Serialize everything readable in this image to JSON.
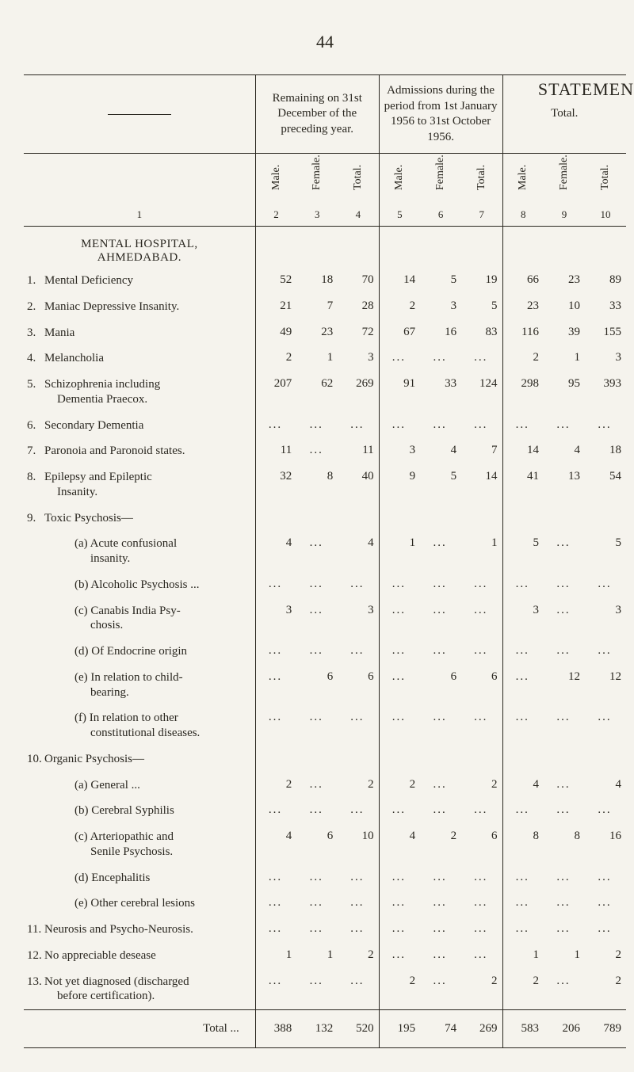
{
  "page_number": "44",
  "statemen": "STATEMEN",
  "col_group_1": "Remaining on 31st December of the preceding year.",
  "col_group_2": "Admissions during the period from 1st January 1956 to 31st October 1956.",
  "col_group_3": "Total.",
  "heads": {
    "male": "Male.",
    "female": "Female.",
    "total": "Total."
  },
  "col_nums": [
    "1",
    "2",
    "3",
    "4",
    "5",
    "6",
    "7",
    "8",
    "9",
    "10"
  ],
  "hospital_line1": "MENTAL HOSPITAL,",
  "hospital_line2": "AHMEDABAD.",
  "rows": [
    {
      "no": "1.",
      "label": "Mental Deficiency",
      "trail": "...",
      "v": [
        "52",
        "18",
        "70",
        "14",
        "5",
        "19",
        "66",
        "23",
        "89"
      ]
    },
    {
      "no": "2.",
      "label": "Maniac Depressive   Insanity.",
      "trail": "",
      "v": [
        "21",
        "7",
        "28",
        "2",
        "3",
        "5",
        "23",
        "10",
        "33"
      ]
    },
    {
      "no": "3.",
      "label": "Mania",
      "trail": "...          ...",
      "v": [
        "49",
        "23",
        "72",
        "67",
        "16",
        "83",
        "116",
        "39",
        "155"
      ]
    },
    {
      "no": "4.",
      "label": "Melancholia",
      "trail": "...          ...",
      "v": [
        "2",
        "1",
        "3",
        "...",
        "...",
        "...",
        "2",
        "1",
        "3"
      ]
    },
    {
      "no": "5.",
      "label": "Schizophrenia         including",
      "sub": "Dementia Praecox.",
      "v": [
        "207",
        "62",
        "269",
        "91",
        "33",
        "124",
        "298",
        "95",
        "393"
      ]
    },
    {
      "no": "6.",
      "label": "Secondary Dementia",
      "trail": "...",
      "v": [
        "...",
        "...",
        "...",
        "...",
        "...",
        "...",
        "...",
        "...",
        "..."
      ]
    },
    {
      "no": "7.",
      "label": "Paronoia and Paronoid states.",
      "v": [
        "11",
        "...",
        "11",
        "3",
        "4",
        "7",
        "14",
        "4",
        "18"
      ]
    },
    {
      "no": "8.",
      "label": "Epilepsy     and       Epileptic",
      "sub": "Insanity.",
      "v": [
        "32",
        "8",
        "40",
        "9",
        "5",
        "14",
        "41",
        "13",
        "54"
      ]
    }
  ],
  "row9_head": {
    "no": "9.",
    "label": "Toxic Psychosis—"
  },
  "row9a": {
    "label": "(a) Acute         confusional",
    "sub": "insanity.",
    "v": [
      "4",
      "...",
      "4",
      "1",
      "...",
      "1",
      "5",
      "...",
      "5"
    ]
  },
  "row9b": {
    "label": "(b) Alcoholic Psychosis  ...",
    "v": [
      "...",
      "...",
      "...",
      "...",
      "...",
      "...",
      "...",
      "...",
      "..."
    ]
  },
  "row9c": {
    "label": "(c) Canabis   India   Psy-",
    "sub": "chosis.",
    "v": [
      "3",
      "...",
      "3",
      "...",
      "...",
      "...",
      "3",
      "...",
      "3"
    ]
  },
  "row9d": {
    "label": "(d) Of  Endocrine   origin",
    "v": [
      "...",
      "...",
      "...",
      "...",
      "...",
      "...",
      "...",
      "...",
      "..."
    ]
  },
  "row9e": {
    "label": "(e) In relation to   child-",
    "sub": "bearing.",
    "v": [
      "...",
      "6",
      "6",
      "...",
      "6",
      "6",
      "...",
      "12",
      "12"
    ]
  },
  "row9f": {
    "label": "(f) In  relation  to  other",
    "sub": "constitutional diseases.",
    "v": [
      "...",
      "...",
      "...",
      "...",
      "...",
      "...",
      "...",
      "...",
      "..."
    ]
  },
  "row10_head": {
    "no": "10.",
    "label": "Organic Psychosis—"
  },
  "row10a": {
    "label": "(a) General  ...",
    "trail": "...",
    "v": [
      "2",
      "...",
      "2",
      "2",
      "...",
      "2",
      "4",
      "...",
      "4"
    ]
  },
  "row10b": {
    "label": "(b) Cerebral Syphilis",
    "trail": "...",
    "v": [
      "...",
      "...",
      "...",
      "...",
      "...",
      "...",
      "...",
      "...",
      "..."
    ]
  },
  "row10c": {
    "label": "(c) Arteriopathic        and",
    "sub": "Senile Psychosis.",
    "v": [
      "4",
      "6",
      "10",
      "4",
      "2",
      "6",
      "8",
      "8",
      "16"
    ]
  },
  "row10d": {
    "label": "(d) Encephalitis",
    "trail": "...",
    "v": [
      "...",
      "...",
      "...",
      "...",
      "...",
      "...",
      "...",
      "...",
      "..."
    ]
  },
  "row10e": {
    "label": "(e) Other cerebral lesions",
    "v": [
      "...",
      "...",
      "...",
      "...",
      "...",
      "...",
      "...",
      "...",
      "..."
    ]
  },
  "row11": {
    "no": "11.",
    "label": "Neurosis and Psycho-Neurosis.",
    "v": [
      "...",
      "...",
      "...",
      "...",
      "...",
      "...",
      "...",
      "...",
      "..."
    ]
  },
  "row12": {
    "no": "12.",
    "label": "No appreciable desease",
    "trail": "...",
    "v": [
      "1",
      "1",
      "2",
      "...",
      "...",
      "...",
      "1",
      "1",
      "2"
    ]
  },
  "row13": {
    "no": "13.",
    "label": "Not yet diagnosed (discharged",
    "sub": "before certification).",
    "v": [
      "...",
      "...",
      "...",
      "2",
      "...",
      "2",
      "2",
      "...",
      "2"
    ]
  },
  "total_label": "Total   ...",
  "total_v": [
    "388",
    "132",
    "520",
    "195",
    "74",
    "269",
    "583",
    "206",
    "789"
  ]
}
